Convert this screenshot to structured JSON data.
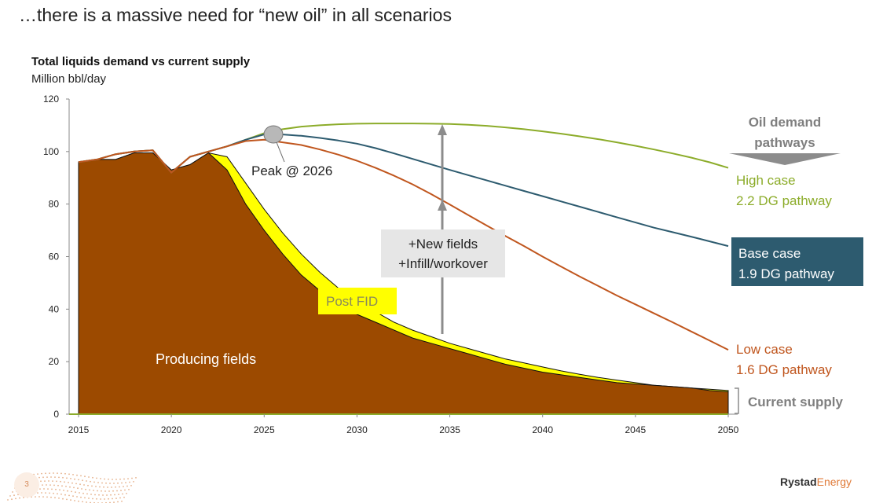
{
  "slide": {
    "title": "…there is a massive need for “new oil” in all scenarios",
    "page_number": "3",
    "logo_bold": "Rystad",
    "logo_light": "Energy"
  },
  "chart_data": {
    "type": "area",
    "title": "Total liquids demand vs current supply",
    "ylabel": "Million bbl/day",
    "xlabel": "",
    "xlim": [
      2015,
      2050
    ],
    "ylim": [
      0,
      120
    ],
    "x_ticks": [
      2015,
      2020,
      2025,
      2030,
      2035,
      2040,
      2045,
      2050
    ],
    "y_ticks": [
      0,
      20,
      40,
      60,
      80,
      100,
      120
    ],
    "grid": false,
    "x": [
      2015,
      2016,
      2017,
      2018,
      2019,
      2020,
      2021,
      2022,
      2023,
      2024,
      2025,
      2026,
      2027,
      2028,
      2029,
      2030,
      2031,
      2032,
      2033,
      2034,
      2035,
      2036,
      2037,
      2038,
      2039,
      2040,
      2041,
      2042,
      2043,
      2044,
      2045,
      2046,
      2047,
      2048,
      2049,
      2050
    ],
    "series": [
      {
        "name": "Producing fields",
        "kind": "area",
        "color": "#9c4a00",
        "values": [
          96,
          97,
          97,
          99.5,
          99.5,
          93,
          95,
          99.5,
          93,
          80,
          70,
          61,
          53,
          47,
          42,
          38,
          35,
          32,
          29,
          27,
          25,
          23,
          21,
          19,
          17.5,
          16,
          15,
          14,
          13,
          12,
          11.5,
          11,
          10.5,
          10,
          9,
          8.5
        ]
      },
      {
        "name": "Post FID",
        "kind": "area",
        "color": "#ffff00",
        "values": [
          96,
          97,
          97,
          99.5,
          99.5,
          93,
          95,
          99.5,
          98,
          88,
          78,
          69,
          61,
          54,
          48,
          43,
          39,
          35,
          32,
          29.5,
          27,
          25,
          23,
          21,
          19.5,
          18,
          16.5,
          15.2,
          14,
          13,
          12,
          11,
          10.5,
          10,
          9.5,
          9
        ]
      },
      {
        "name": "High case 2.2 DG pathway",
        "kind": "line",
        "color": "#8cac2a",
        "values": [
          96,
          97,
          99,
          100,
          100.5,
          92,
          98,
          100,
          102,
          104.5,
          107,
          108.5,
          109.5,
          110,
          110.4,
          110.6,
          110.7,
          110.7,
          110.7,
          110.6,
          110.5,
          110.2,
          109.8,
          109.2,
          108.5,
          107.7,
          106.8,
          105.8,
          104.7,
          103.5,
          102.2,
          100.8,
          99.3,
          97.7,
          95.9,
          93.8
        ]
      },
      {
        "name": "Base case 1.9 DG pathway",
        "kind": "line",
        "color": "#2d5b6f",
        "values": [
          96,
          97,
          99,
          100,
          100.5,
          92,
          98,
          100,
          102,
          104.5,
          106.5,
          106.5,
          106,
          105.2,
          104.2,
          103,
          101.3,
          99.3,
          97.2,
          95.1,
          93,
          91,
          89,
          87,
          85,
          83,
          81,
          79,
          77,
          75,
          73,
          71,
          69.3,
          67.6,
          65.8,
          64
        ]
      },
      {
        "name": "Low case 1.6 DG pathway",
        "kind": "line",
        "color": "#c0561e",
        "values": [
          96,
          97,
          99,
          100,
          100.5,
          92,
          98,
          100,
          102,
          104,
          104.5,
          103.5,
          102.5,
          100.8,
          98.8,
          96.5,
          93.8,
          90.8,
          87.5,
          83.8,
          79.8,
          75.8,
          71.8,
          67.8,
          64,
          60,
          56.2,
          52.4,
          48.8,
          45.2,
          41.8,
          38.4,
          35,
          31.5,
          28,
          24.5
        ]
      }
    ],
    "annotations": {
      "peak": "Peak @ 2026",
      "producing_fields": "Producing fields",
      "post_fid": "Post FID",
      "new_fields_1": "+New fields",
      "new_fields_2": "+Infill/workover",
      "oil_demand_1": "Oil demand",
      "oil_demand_2": "pathways",
      "high_1": "High case",
      "high_2": "2.2 DG pathway",
      "base_1": "Base case",
      "base_2": "1.9 DG pathway",
      "low_1": "Low case",
      "low_2": "1.6 DG pathway",
      "current_supply": "Current supply"
    }
  }
}
